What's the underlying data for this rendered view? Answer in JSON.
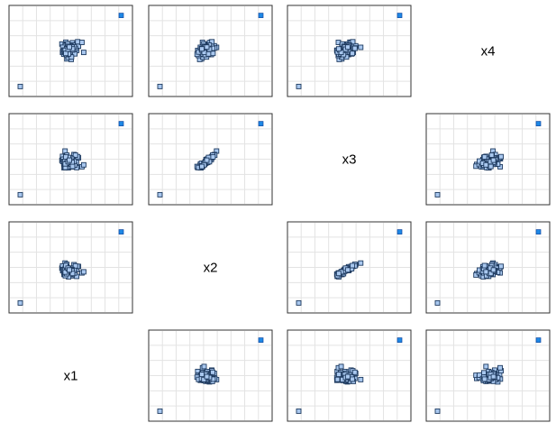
{
  "chart_data": {
    "type": "scatter",
    "variables": [
      "x1",
      "x2",
      "x3",
      "x4"
    ],
    "grid": true,
    "x1": [
      -2.87,
      0.51,
      0.64,
      0.97,
      0.89,
      0.99,
      0.57,
      1.02,
      0.46,
      0.66,
      1.13,
      0.83,
      1.18,
      0.76,
      0.61,
      0.65,
      0.64,
      0.75,
      1.08,
      0.6,
      0.43,
      0.41,
      0.73,
      1.07,
      0.47,
      0.66,
      1.35,
      0.73,
      0.55,
      1.37,
      0.71,
      0.86,
      0.27,
      1.06,
      1.09,
      0.39,
      1.52,
      0.32,
      1.46,
      0.52,
      0.47,
      0.52,
      1.38,
      0.33,
      0.85,
      0.82,
      0.97,
      1.78,
      0.99,
      0.99,
      0.9,
      0.77,
      0.35,
      0.62,
      0.94,
      1.29,
      0.62,
      0.71,
      0.42,
      0.65,
      1.02,
      0.7,
      1.24,
      0.5,
      0.75,
      1.19,
      0.79,
      0.99,
      0.53,
      0.63,
      0.62,
      0.52,
      1.08,
      0.77,
      1.04,
      1.91,
      0.56,
      1.07,
      0.73,
      0.83,
      4.74
    ],
    "x2": [
      -3.13,
      1.79,
      0.49,
      0.32,
      0.57,
      0.57,
      1.32,
      0.83,
      0.99,
      0.74,
      1.14,
      0.91,
      1.59,
      1.02,
      1.19,
      0.65,
      1.63,
      0.43,
      0.66,
      1.33,
      0.39,
      0.68,
      0.6,
      1.02,
      1.07,
      1.19,
      1.06,
      1.06,
      1.02,
      0.97,
      1.01,
      0.95,
      1.17,
      1.17,
      0.85,
      1.26,
      1.37,
      1.43,
      1.39,
      1.15,
      0.4,
      0.87,
      0.15,
      0.85,
      0.47,
      0.99,
      1.01,
      0.57,
      0.49,
      0.22,
      0.38,
      0.1,
      0.97,
      0.63,
      0.76,
      1.45,
      0.95,
      0.65,
      0.97,
      0.98,
      1.0,
      0.93,
      0.58,
      0.91,
      0.74,
      0.89,
      0.75,
      0.92,
      0.23,
      0.8,
      0.48,
      0.68,
      0.49,
      1.09,
      0.81,
      0.71,
      1.48,
      0.51,
      1.17,
      0.94,
      5.64
    ],
    "x3": [
      -3.86,
      2.32,
      0.43,
      0.17,
      0.49,
      0.43,
      1.24,
      0.77,
      1.11,
      0.44,
      1.07,
      0.68,
      1.82,
      0.71,
      1.34,
      0.58,
      1.74,
      -0.06,
      0.58,
      1.11,
      -0.05,
      0.52,
      0.42,
      0.83,
      0.89,
      1.11,
      0.91,
      0.97,
      1.03,
      0.71,
      0.86,
      1.07,
      1.0,
      1.35,
      0.61,
      1.42,
      1.36,
      1.57,
      1.53,
      1.19,
      0.08,
      1.12,
      -0.02,
      0.85,
      0.22,
      1.05,
      1.01,
      0.09,
      0.09,
      0.08,
      0.46,
      0.14,
      1.16,
      0.43,
      0.44,
      1.74,
      0.97,
      0.48,
      0.85,
      0.85,
      1.18,
      0.84,
      0.33,
      0.84,
      0.65,
      0.87,
      0.46,
      0.9,
      0.0,
      0.6,
      0.6,
      0.51,
      0.23,
      1.41,
      0.72,
      0.37,
      1.49,
      0.13,
      0.81,
      1.03,
      6.2
    ],
    "x4": [
      -3.11,
      1.21,
      -0.06,
      -0.12,
      0.81,
      0.94,
      1.78,
      1.09,
      1.51,
      0.77,
      0.87,
      1.49,
      1.38,
      1.21,
      1.53,
      0.55,
      1.14,
      0.89,
      1.03,
      0.42,
      0.82,
      0.46,
      0.13,
      1.36,
      0.88,
      0.59,
      1.5,
      0.41,
      1.56,
      1.55,
      0.72,
      0.46,
      1.58,
      1.72,
      1.46,
      1.07,
      1.33,
      0.66,
      1.83,
      1.46,
      0.77,
      1.39,
      0.87,
      1.22,
      0.52,
      0.91,
      1.01,
      1.76,
      0.71,
      0.31,
      1.21,
      0.45,
      0.79,
      0.43,
      1.37,
      1.1,
      0.87,
      1.58,
      0.9,
      0.59,
      0.71,
      1.11,
      0.5,
      0.88,
      1.33,
      1.27,
      0.68,
      0.15,
      0.7,
      0.41,
      1.07,
      0.88,
      0.91,
      0.49,
      1.24,
      0.66,
      0.55,
      1.04,
      1.01,
      1.24,
      4.74
    ],
    "highlighted_point_index": 30
  }
}
